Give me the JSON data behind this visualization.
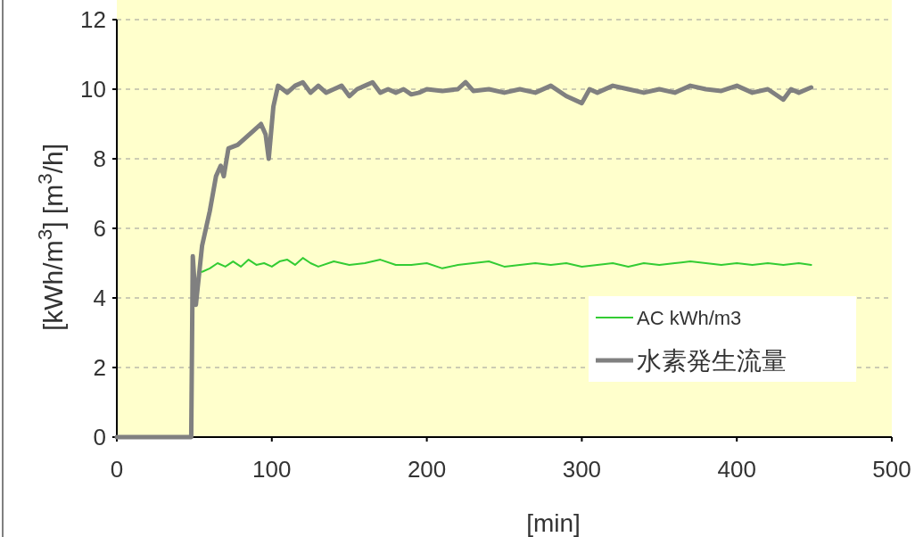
{
  "chart_data": {
    "type": "line",
    "xlabel": "[min]",
    "ylabel": "[kWh/m$^{3}$]  [m$^{3}$/h]",
    "xlim": [
      0,
      500
    ],
    "ylim": [
      0,
      12
    ],
    "xticks": [
      0,
      100,
      200,
      300,
      400,
      500
    ],
    "yticks": [
      0,
      2,
      4,
      6,
      8,
      10,
      12
    ],
    "grid": "y",
    "legend": "bottom right",
    "marker": "none",
    "line_style": "solid",
    "series": [
      {
        "name": "AC kWh/m3",
        "color": "#33cc33",
        "x": [
          55,
          60,
          65,
          70,
          75,
          80,
          85,
          90,
          95,
          100,
          105,
          110,
          115,
          120,
          125,
          130,
          140,
          150,
          160,
          170,
          180,
          190,
          200,
          210,
          220,
          230,
          240,
          250,
          260,
          270,
          280,
          290,
          300,
          310,
          320,
          330,
          340,
          350,
          360,
          370,
          380,
          390,
          400,
          410,
          420,
          430,
          440,
          448
        ],
        "values": [
          4.75,
          4.85,
          5.0,
          4.9,
          5.05,
          4.9,
          5.1,
          4.95,
          5.0,
          4.9,
          5.05,
          5.1,
          4.95,
          5.15,
          5.0,
          4.9,
          5.05,
          4.95,
          5.0,
          5.1,
          4.95,
          4.95,
          5.0,
          4.85,
          4.95,
          5.0,
          5.05,
          4.9,
          4.95,
          5.0,
          4.95,
          5.0,
          4.9,
          4.95,
          5.0,
          4.9,
          5.0,
          4.95,
          5.0,
          5.05,
          5.0,
          4.95,
          5.0,
          4.95,
          5.0,
          4.95,
          5.0,
          4.95
        ]
      },
      {
        "name": "水素発生流量",
        "color": "#808080",
        "x": [
          0,
          48,
          49,
          51,
          55,
          60,
          64,
          67,
          69,
          72,
          78,
          83,
          88,
          93,
          96,
          98,
          101,
          104,
          110,
          115,
          120,
          125,
          130,
          135,
          140,
          145,
          150,
          155,
          160,
          165,
          170,
          175,
          180,
          185,
          190,
          195,
          200,
          210,
          220,
          225,
          230,
          240,
          250,
          260,
          270,
          280,
          290,
          300,
          305,
          310,
          320,
          330,
          340,
          350,
          360,
          370,
          380,
          390,
          400,
          410,
          420,
          430,
          435,
          440,
          448
        ],
        "values": [
          0,
          0,
          5.2,
          3.8,
          5.5,
          6.5,
          7.5,
          7.8,
          7.5,
          8.3,
          8.4,
          8.6,
          8.8,
          9.0,
          8.7,
          8.0,
          9.5,
          10.1,
          9.9,
          10.1,
          10.2,
          9.9,
          10.1,
          9.9,
          10.0,
          10.1,
          9.8,
          10.0,
          10.1,
          10.2,
          9.9,
          10.0,
          9.9,
          10.0,
          9.85,
          9.9,
          10.0,
          9.95,
          10.0,
          10.2,
          9.95,
          10.0,
          9.9,
          10.0,
          9.9,
          10.1,
          9.8,
          9.6,
          10.0,
          9.9,
          10.1,
          10.0,
          9.9,
          10.0,
          9.9,
          10.1,
          10.0,
          9.95,
          10.1,
          9.9,
          10.0,
          9.7,
          10.0,
          9.9,
          10.05
        ]
      }
    ]
  }
}
